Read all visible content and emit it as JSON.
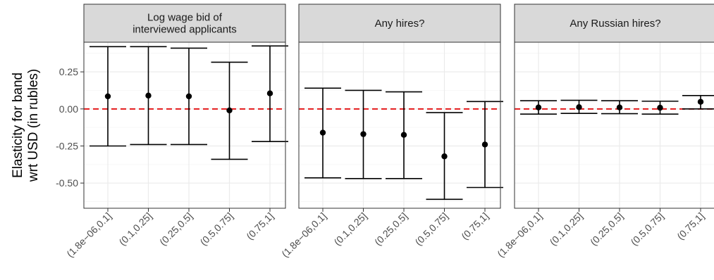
{
  "chart_data": {
    "type": "errorbar",
    "ylabel": [
      "Elasticity for band",
      "wrt USD (in rubles)"
    ],
    "y_ticks": [
      0.25,
      0.0,
      -0.25,
      -0.5
    ],
    "y_tick_labels": [
      "0.25",
      "0.00",
      "-0.25",
      "-0.50"
    ],
    "ylim": [
      -0.67,
      0.45
    ],
    "reference_line": {
      "y": 0,
      "color": "#e41a1c",
      "style": "dashed"
    },
    "categories": [
      "(1.8e−06,0.1]",
      "(0.1,0.25]",
      "(0.25,0.5]",
      "(0.5,0.75]",
      "(0.75,1]"
    ],
    "panels": [
      {
        "title": [
          "Log wage bid of",
          "interviewed applicants"
        ],
        "estimates": [
          0.085,
          0.09,
          0.085,
          -0.01,
          0.105
        ],
        "lower": [
          -0.25,
          -0.24,
          -0.24,
          -0.34,
          -0.22
        ],
        "upper": [
          0.42,
          0.42,
          0.41,
          0.315,
          0.425
        ]
      },
      {
        "title": [
          "Any hires?"
        ],
        "estimates": [
          -0.16,
          -0.17,
          -0.175,
          -0.32,
          -0.24
        ],
        "lower": [
          -0.465,
          -0.47,
          -0.47,
          -0.61,
          -0.53
        ],
        "upper": [
          0.14,
          0.125,
          0.115,
          -0.025,
          0.05
        ]
      },
      {
        "title": [
          "Any Russian hires?"
        ],
        "estimates": [
          0.01,
          0.012,
          0.01,
          0.008,
          0.048
        ],
        "lower": [
          -0.035,
          -0.03,
          -0.032,
          -0.035,
          0.0
        ],
        "upper": [
          0.055,
          0.058,
          0.055,
          0.052,
          0.09
        ]
      }
    ],
    "colors": {
      "strip_fill": "#d9d9d9",
      "border": "#333333",
      "grid_major": "#ebebeb",
      "grid_minor": "#f5f5f5",
      "points": "#000000"
    }
  }
}
